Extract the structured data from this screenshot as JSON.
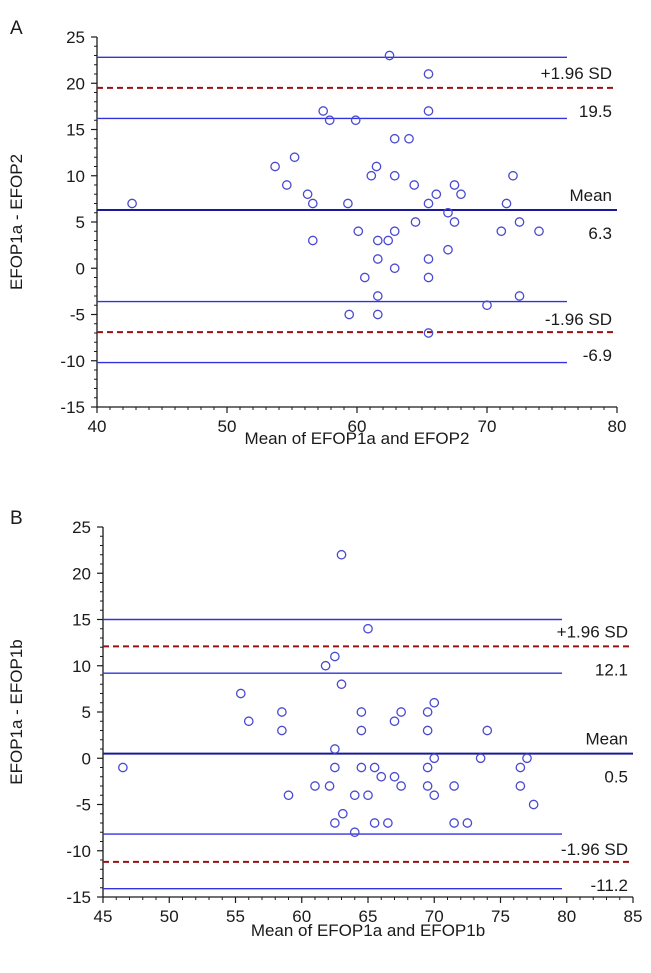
{
  "colors": {
    "limit_line": "#3333dd",
    "mean_line": "#1a1a99",
    "sd_dashed": "#991111",
    "marker": "#4a4ad0",
    "axis": "#1a1a1a"
  },
  "chart_data": [
    {
      "type": "scatter",
      "panel_label": "A",
      "xlabel": "Mean of EFOP1a and EFOP2",
      "ylabel": "EFOP1a - EFOP2",
      "xlim": [
        40,
        80
      ],
      "ylim": [
        -15,
        25
      ],
      "xticks": [
        40,
        50,
        60,
        70,
        80
      ],
      "yticks": [
        -15,
        -10,
        -5,
        0,
        5,
        10,
        15,
        20,
        25
      ],
      "grid": false,
      "mean": 6.3,
      "upper_loa": 19.5,
      "lower_loa": -6.9,
      "mean_ci": [
        -3.6,
        16.2
      ],
      "upper_ci": [
        16.2,
        22.8
      ],
      "lower_ci": [
        -10.2,
        -3.6
      ],
      "annotations": {
        "upper_label": "+1.96 SD",
        "upper_value": "19.5",
        "mean_label": "Mean",
        "mean_value": "6.3",
        "lower_label": "-1.96 SD",
        "lower_value": "-6.9"
      },
      "points": [
        {
          "x": 42.7,
          "y": 7
        },
        {
          "x": 53.7,
          "y": 11
        },
        {
          "x": 54.6,
          "y": 9
        },
        {
          "x": 55.2,
          "y": 12
        },
        {
          "x": 56.2,
          "y": 8
        },
        {
          "x": 56.6,
          "y": 7
        },
        {
          "x": 56.6,
          "y": 3
        },
        {
          "x": 57.4,
          "y": 17
        },
        {
          "x": 57.9,
          "y": 16
        },
        {
          "x": 59.3,
          "y": 7
        },
        {
          "x": 59.4,
          "y": -5
        },
        {
          "x": 59.9,
          "y": 16
        },
        {
          "x": 60.1,
          "y": 4
        },
        {
          "x": 60.6,
          "y": -1
        },
        {
          "x": 61.1,
          "y": 10
        },
        {
          "x": 61.5,
          "y": 11
        },
        {
          "x": 61.6,
          "y": 3
        },
        {
          "x": 61.6,
          "y": 1
        },
        {
          "x": 61.6,
          "y": -3
        },
        {
          "x": 61.6,
          "y": -5
        },
        {
          "x": 62.4,
          "y": 3
        },
        {
          "x": 62.5,
          "y": 23
        },
        {
          "x": 62.9,
          "y": 14
        },
        {
          "x": 62.9,
          "y": 10
        },
        {
          "x": 62.9,
          "y": 4
        },
        {
          "x": 62.9,
          "y": 0
        },
        {
          "x": 64.0,
          "y": 14
        },
        {
          "x": 64.4,
          "y": 9
        },
        {
          "x": 64.5,
          "y": 5
        },
        {
          "x": 65.5,
          "y": 21
        },
        {
          "x": 65.5,
          "y": 17
        },
        {
          "x": 65.5,
          "y": 7
        },
        {
          "x": 65.5,
          "y": 1
        },
        {
          "x": 65.5,
          "y": -1
        },
        {
          "x": 65.5,
          "y": -7
        },
        {
          "x": 66.1,
          "y": 8
        },
        {
          "x": 67.0,
          "y": 6
        },
        {
          "x": 67.0,
          "y": 2
        },
        {
          "x": 67.5,
          "y": 9
        },
        {
          "x": 67.5,
          "y": 5
        },
        {
          "x": 68.0,
          "y": 8
        },
        {
          "x": 70.0,
          "y": -4
        },
        {
          "x": 71.1,
          "y": 4
        },
        {
          "x": 71.5,
          "y": 7
        },
        {
          "x": 72.0,
          "y": 10
        },
        {
          "x": 72.5,
          "y": 5
        },
        {
          "x": 72.5,
          "y": -3
        },
        {
          "x": 74.0,
          "y": 4
        }
      ]
    },
    {
      "type": "scatter",
      "panel_label": "B",
      "xlabel": "Mean of EFOP1a and EFOP1b",
      "ylabel": "EFOP1a - EFOP1b",
      "xlim": [
        45,
        85
      ],
      "ylim": [
        -15,
        25
      ],
      "xticks": [
        45,
        50,
        55,
        60,
        65,
        70,
        75,
        80,
        85
      ],
      "yticks": [
        -15,
        -10,
        -5,
        0,
        5,
        10,
        15,
        20,
        25
      ],
      "grid": false,
      "mean": 0.5,
      "upper_loa": 12.1,
      "lower_loa": -11.2,
      "mean_ci": [
        -8.2,
        9.2
      ],
      "upper_ci": [
        9.2,
        15
      ],
      "lower_ci": [
        -14.1,
        -8.2
      ],
      "annotations": {
        "upper_label": "+1.96 SD",
        "upper_value": "12.1",
        "mean_label": "Mean",
        "mean_value": "0.5",
        "lower_label": "-1.96 SD",
        "lower_value": "-11.2"
      },
      "points": [
        {
          "x": 46.5,
          "y": -1
        },
        {
          "x": 55.4,
          "y": 7
        },
        {
          "x": 56.0,
          "y": 4
        },
        {
          "x": 58.5,
          "y": 5
        },
        {
          "x": 58.5,
          "y": 3
        },
        {
          "x": 59.0,
          "y": -4
        },
        {
          "x": 61.0,
          "y": -3
        },
        {
          "x": 61.8,
          "y": 10
        },
        {
          "x": 62.1,
          "y": -3
        },
        {
          "x": 62.5,
          "y": 11
        },
        {
          "x": 62.5,
          "y": 1
        },
        {
          "x": 62.5,
          "y": -1
        },
        {
          "x": 62.5,
          "y": -7
        },
        {
          "x": 63.0,
          "y": 22
        },
        {
          "x": 63.0,
          "y": 8
        },
        {
          "x": 63.1,
          "y": -6
        },
        {
          "x": 64.0,
          "y": -4
        },
        {
          "x": 64.0,
          "y": -8
        },
        {
          "x": 64.5,
          "y": 5
        },
        {
          "x": 64.5,
          "y": 3
        },
        {
          "x": 64.5,
          "y": -1
        },
        {
          "x": 65.0,
          "y": 14
        },
        {
          "x": 65.0,
          "y": -4
        },
        {
          "x": 65.5,
          "y": -1
        },
        {
          "x": 65.5,
          "y": -7
        },
        {
          "x": 66.0,
          "y": -2
        },
        {
          "x": 66.5,
          "y": -7
        },
        {
          "x": 67.0,
          "y": 4
        },
        {
          "x": 67.0,
          "y": -2
        },
        {
          "x": 67.5,
          "y": 5
        },
        {
          "x": 67.5,
          "y": -3
        },
        {
          "x": 69.5,
          "y": 5
        },
        {
          "x": 69.5,
          "y": 3
        },
        {
          "x": 69.5,
          "y": -1
        },
        {
          "x": 69.5,
          "y": -3
        },
        {
          "x": 70.0,
          "y": 6
        },
        {
          "x": 70.0,
          "y": 0
        },
        {
          "x": 70.0,
          "y": -4
        },
        {
          "x": 71.5,
          "y": -3
        },
        {
          "x": 71.5,
          "y": -7
        },
        {
          "x": 72.5,
          "y": -7
        },
        {
          "x": 73.5,
          "y": 0
        },
        {
          "x": 74.0,
          "y": 3
        },
        {
          "x": 76.5,
          "y": -1
        },
        {
          "x": 76.5,
          "y": -3
        },
        {
          "x": 77.0,
          "y": 0
        },
        {
          "x": 77.5,
          "y": -5
        }
      ]
    }
  ]
}
